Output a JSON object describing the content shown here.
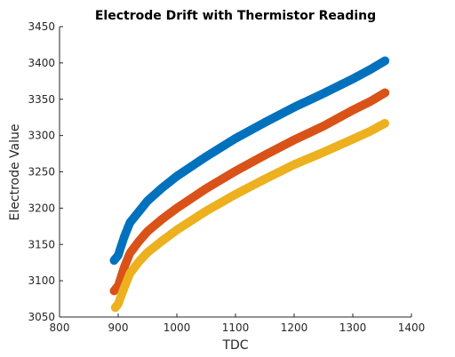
{
  "chart_data": {
    "type": "scatter",
    "title": "Electrode Drift with Thermistor Reading",
    "xlabel": "TDC",
    "ylabel": "Electrode Value",
    "xlim": [
      800,
      1400
    ],
    "ylim": [
      3050,
      3450
    ],
    "xticks": [
      800,
      900,
      1000,
      1100,
      1200,
      1300,
      1400
    ],
    "yticks": [
      3050,
      3100,
      3150,
      3200,
      3250,
      3300,
      3350,
      3400,
      3450
    ],
    "grid": false,
    "legend": "none",
    "series": [
      {
        "color": "#0072BD",
        "x": [
          893,
          900,
          910,
          920,
          935,
          950,
          975,
          1000,
          1050,
          1100,
          1150,
          1200,
          1250,
          1300,
          1330,
          1355
        ],
        "y": [
          3128,
          3135,
          3160,
          3180,
          3195,
          3210,
          3228,
          3244,
          3271,
          3296,
          3318,
          3339,
          3358,
          3378,
          3391,
          3403
        ]
      },
      {
        "color": "#D95319",
        "x": [
          893,
          900,
          910,
          920,
          935,
          950,
          975,
          1000,
          1050,
          1100,
          1150,
          1200,
          1250,
          1300,
          1330,
          1355
        ],
        "y": [
          3086,
          3093,
          3118,
          3138,
          3154,
          3168,
          3185,
          3200,
          3227,
          3251,
          3273,
          3294,
          3313,
          3335,
          3347,
          3359
        ]
      },
      {
        "color": "#EDB120",
        "x": [
          895,
          900,
          910,
          920,
          935,
          950,
          975,
          1000,
          1050,
          1100,
          1150,
          1200,
          1250,
          1300,
          1330,
          1355
        ],
        "y": [
          3063,
          3068,
          3090,
          3110,
          3126,
          3139,
          3155,
          3170,
          3196,
          3219,
          3240,
          3260,
          3277,
          3295,
          3306,
          3317
        ]
      }
    ]
  }
}
